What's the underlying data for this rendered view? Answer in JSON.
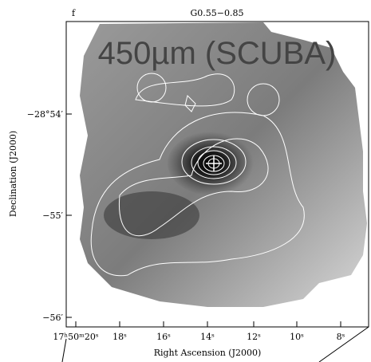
{
  "panel": {
    "label": "f",
    "title": "G0.55−0.85",
    "overlay": "450µm (SCUBA)",
    "y_axis": {
      "label": "Declination (J2000)",
      "ticks": [
        "−28°54′",
        "−55′",
        "−56′"
      ]
    },
    "x_axis": {
      "label": "Right Ascension (J2000)",
      "ticks": [
        "17ʰ50ᵐ20ˢ",
        "18ˢ",
        "16ˢ",
        "14ˢ",
        "12ˢ",
        "10ˢ",
        "8ˢ"
      ]
    }
  }
}
